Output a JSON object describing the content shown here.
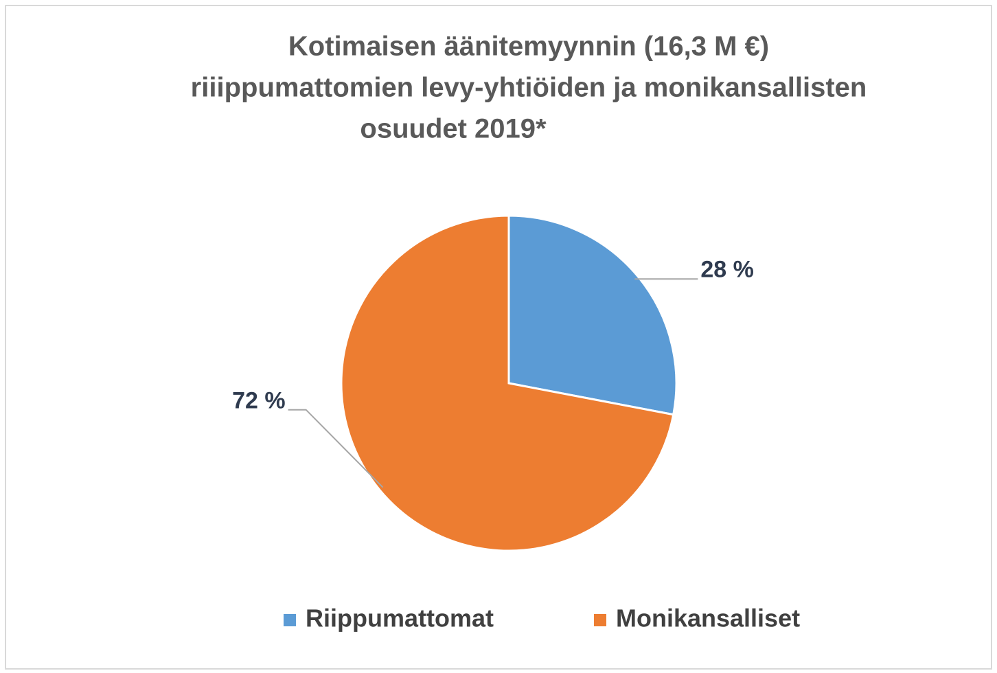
{
  "chart_data": {
    "type": "pie",
    "title": [
      "Kotimaisen äänitemyynnin (16,3 M €)",
      "riiippumattomien levy-yhtiöiden ja monikansallisten",
      "osuudet 2019*"
    ],
    "categories": [
      "Riippumattomat",
      "Monikansalliset"
    ],
    "values": [
      28,
      72
    ],
    "value_labels": [
      "28 %",
      "72 %"
    ],
    "colors": [
      "#5b9bd5",
      "#ed7d31"
    ],
    "legend": "bottom"
  }
}
